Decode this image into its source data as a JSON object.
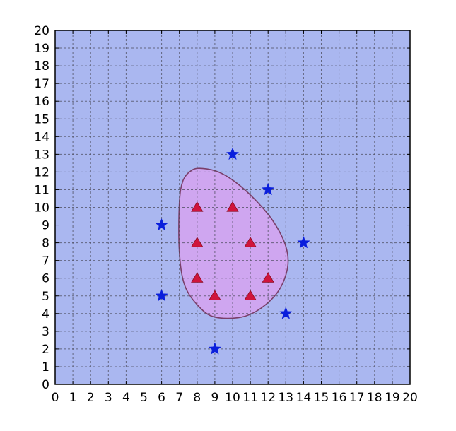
{
  "chart_data": {
    "type": "scatter",
    "title": "",
    "xlabel": "",
    "ylabel": "",
    "xlim": [
      0,
      20
    ],
    "ylim": [
      0,
      20
    ],
    "grid": true,
    "xticks": [
      "0",
      "1",
      "2",
      "3",
      "4",
      "5",
      "6",
      "7",
      "8",
      "9",
      "10",
      "11",
      "12",
      "13",
      "14",
      "15",
      "16",
      "17",
      "18",
      "19",
      "20"
    ],
    "yticks": [
      "0",
      "1",
      "2",
      "3",
      "4",
      "5",
      "6",
      "7",
      "8",
      "9",
      "10",
      "11",
      "12",
      "13",
      "14",
      "15",
      "16",
      "17",
      "18",
      "19",
      "20"
    ],
    "background_color": "#aab7f0",
    "region_color": "#cfa6f0",
    "region_edge_color": "#7a3f6a",
    "series": [
      {
        "marker": "triangle",
        "color": "#d0143c",
        "points": [
          {
            "x": 8,
            "y": 10
          },
          {
            "x": 10,
            "y": 10
          },
          {
            "x": 8,
            "y": 8
          },
          {
            "x": 11,
            "y": 8
          },
          {
            "x": 8,
            "y": 6
          },
          {
            "x": 12,
            "y": 6
          },
          {
            "x": 9,
            "y": 5
          },
          {
            "x": 11,
            "y": 5
          }
        ]
      },
      {
        "marker": "star",
        "color": "#0a1edc",
        "points": [
          {
            "x": 10,
            "y": 13
          },
          {
            "x": 12,
            "y": 11
          },
          {
            "x": 6,
            "y": 9
          },
          {
            "x": 14,
            "y": 8
          },
          {
            "x": 6,
            "y": 5
          },
          {
            "x": 13,
            "y": 4
          },
          {
            "x": 9,
            "y": 2
          }
        ]
      }
    ],
    "decision_region": [
      {
        "x": 8.3,
        "y": 12.2
      },
      {
        "x": 9.2,
        "y": 12.0
      },
      {
        "x": 10.2,
        "y": 11.4
      },
      {
        "x": 11.3,
        "y": 10.4
      },
      {
        "x": 12.3,
        "y": 9.2
      },
      {
        "x": 13.0,
        "y": 7.8
      },
      {
        "x": 13.1,
        "y": 6.6
      },
      {
        "x": 12.6,
        "y": 5.3
      },
      {
        "x": 11.6,
        "y": 4.3
      },
      {
        "x": 10.5,
        "y": 3.8
      },
      {
        "x": 9.0,
        "y": 3.8
      },
      {
        "x": 8.1,
        "y": 4.4
      },
      {
        "x": 7.3,
        "y": 5.6
      },
      {
        "x": 7.0,
        "y": 7.5
      },
      {
        "x": 7.0,
        "y": 10.2
      },
      {
        "x": 7.2,
        "y": 11.5
      },
      {
        "x": 7.7,
        "y": 12.1
      }
    ]
  }
}
